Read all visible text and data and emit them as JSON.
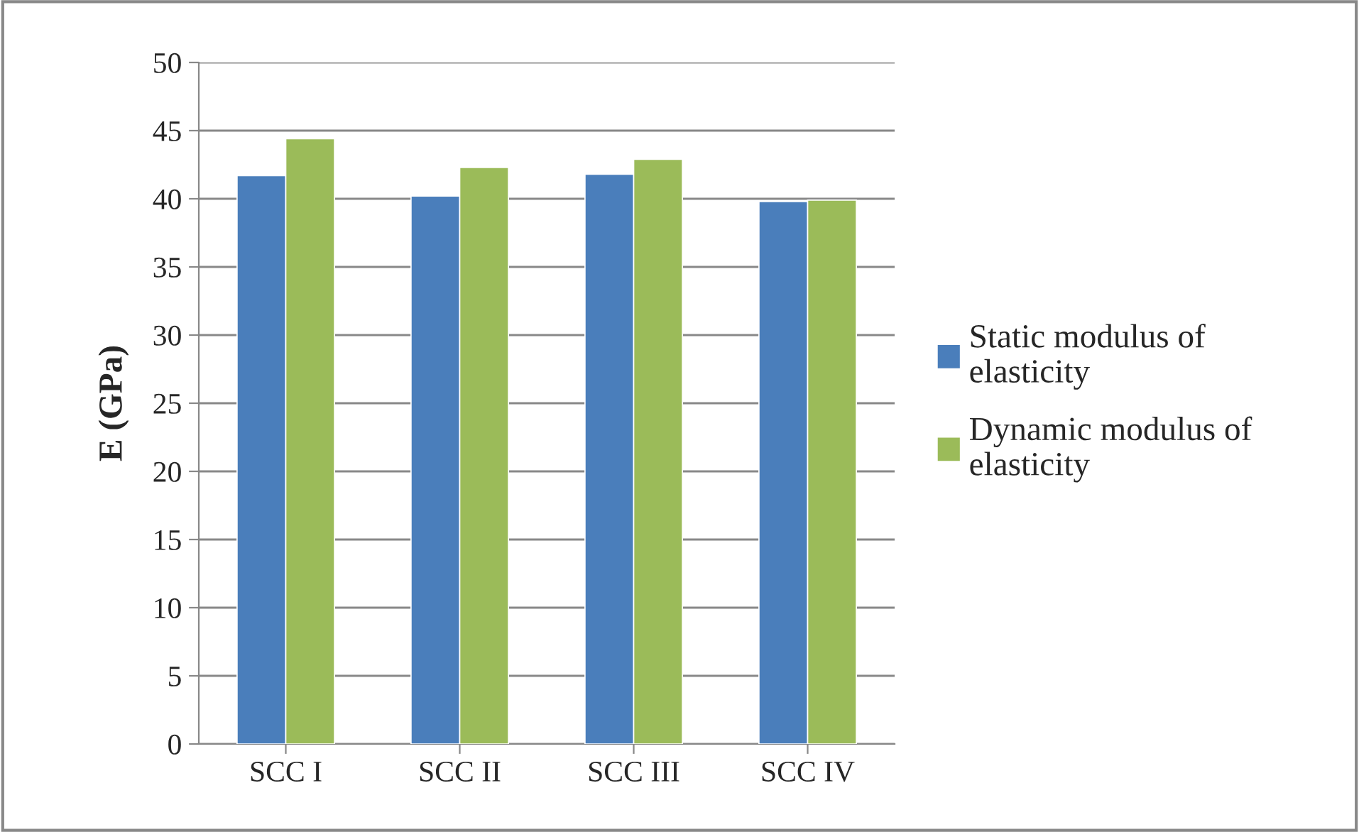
{
  "chart_data": {
    "type": "bar",
    "ylabel": "E (GPa)",
    "categories": [
      "SCC I",
      "SCC II",
      "SCC III",
      "SCC IV"
    ],
    "series": [
      {
        "name": "Static modulus of elasticity",
        "color": "#4a7ebb",
        "values": [
          41.7,
          40.2,
          41.8,
          39.8
        ]
      },
      {
        "name": "Dynamic modulus of elasticity",
        "color": "#9bbb59",
        "values": [
          44.4,
          42.3,
          42.9,
          39.9
        ]
      }
    ],
    "ylim": [
      0,
      50
    ],
    "yticks": [
      0,
      5,
      10,
      15,
      20,
      25,
      30,
      35,
      40,
      45,
      50
    ],
    "grid": "y",
    "legend": "right"
  }
}
